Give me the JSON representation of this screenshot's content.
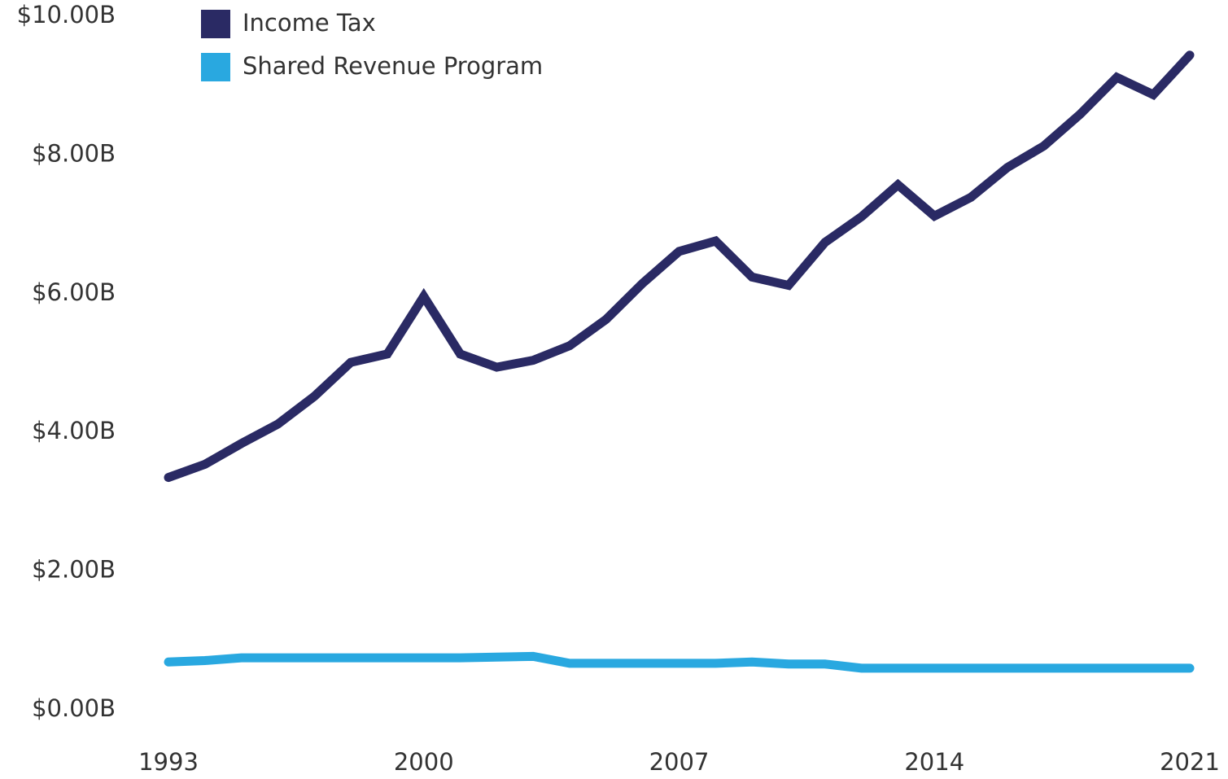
{
  "chart_data": {
    "type": "line",
    "x": [
      1993,
      1994,
      1995,
      1996,
      1997,
      1998,
      1999,
      2000,
      2001,
      2002,
      2003,
      2004,
      2005,
      2006,
      2007,
      2008,
      2009,
      2010,
      2011,
      2012,
      2013,
      2014,
      2015,
      2016,
      2017,
      2018,
      2019,
      2020,
      2021
    ],
    "series": [
      {
        "name": "Income Tax",
        "color": "#2a2a64",
        "values": [
          3.35,
          3.54,
          3.84,
          4.12,
          4.52,
          5.01,
          5.13,
          5.96,
          5.13,
          4.94,
          5.04,
          5.25,
          5.63,
          6.15,
          6.61,
          6.76,
          6.24,
          6.12,
          6.74,
          7.11,
          7.57,
          7.12,
          7.39,
          7.82,
          8.13,
          8.59,
          9.12,
          8.87,
          9.44
        ]
      },
      {
        "name": "Shared Revenue Program",
        "color": "#29a8e0",
        "values": [
          0.69,
          0.71,
          0.75,
          0.75,
          0.75,
          0.75,
          0.75,
          0.75,
          0.75,
          0.76,
          0.77,
          0.67,
          0.67,
          0.67,
          0.67,
          0.67,
          0.69,
          0.66,
          0.66,
          0.6,
          0.6,
          0.6,
          0.6,
          0.6,
          0.6,
          0.6,
          0.6,
          0.6,
          0.6
        ]
      }
    ],
    "xlim": [
      1993,
      2021
    ],
    "xticks": [
      1993,
      2000,
      2007,
      2014,
      2021
    ],
    "ylim": [
      0,
      10
    ],
    "yticks": [
      {
        "value": 0,
        "label": "$0.00B"
      },
      {
        "value": 2,
        "label": "$2.00B"
      },
      {
        "value": 4,
        "label": "$4.00B"
      },
      {
        "value": 6,
        "label": "$6.00B"
      },
      {
        "value": 8,
        "label": "$8.00B"
      },
      {
        "value": 10,
        "label": "$10.00B"
      }
    ],
    "grid": false,
    "legend": "top-left"
  }
}
